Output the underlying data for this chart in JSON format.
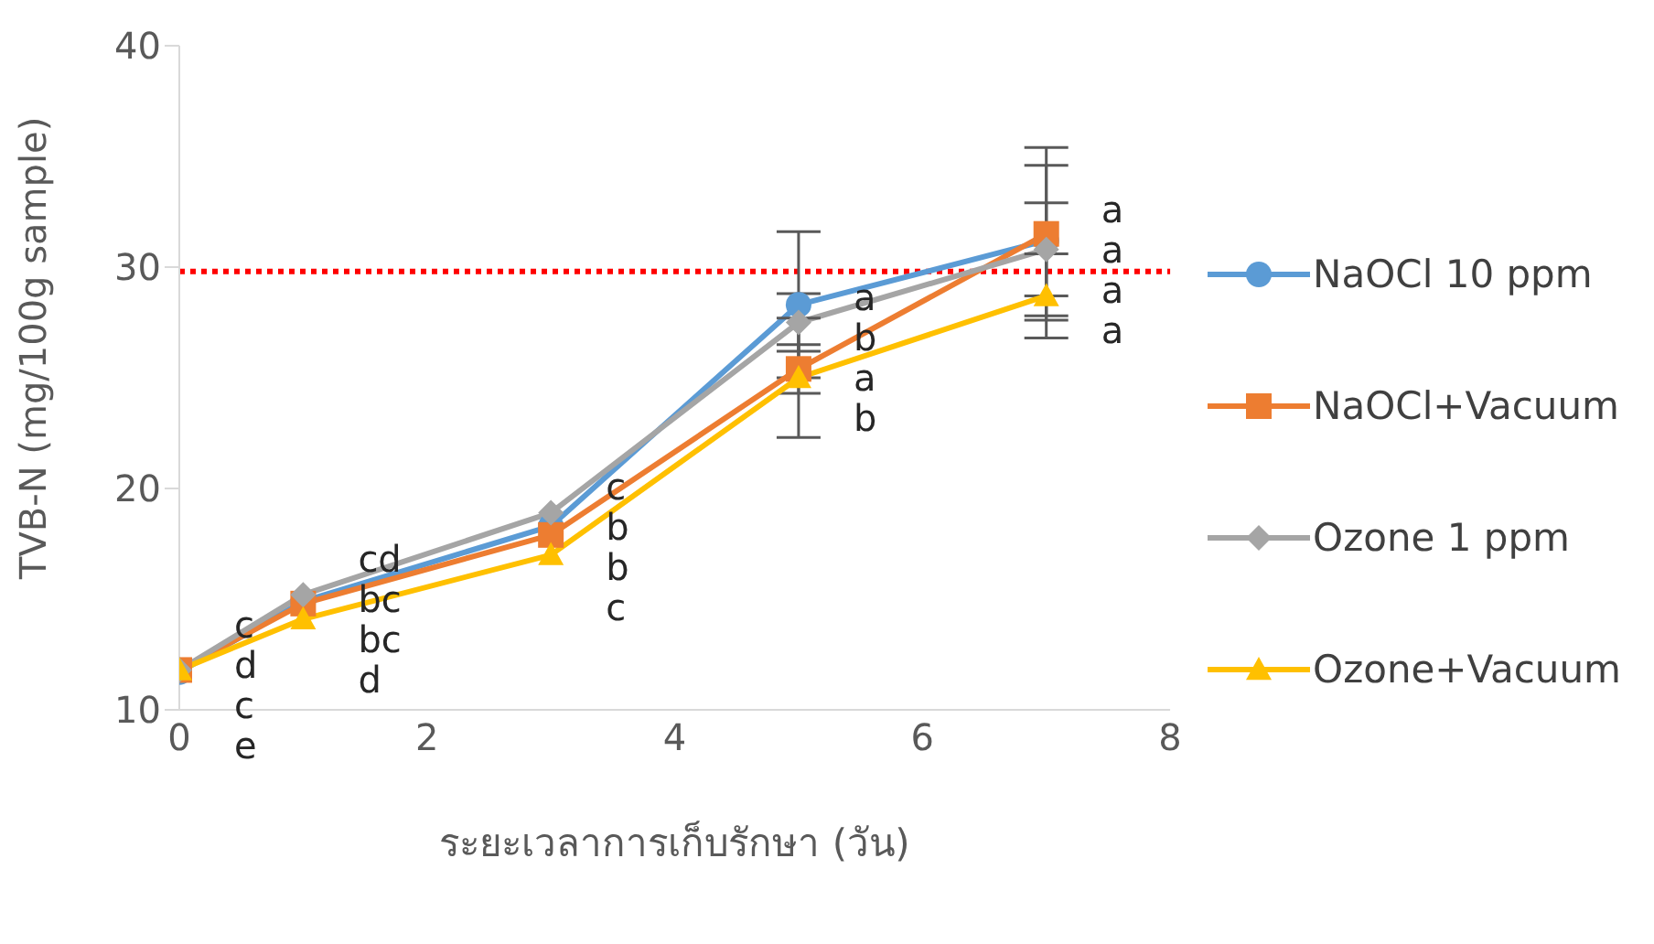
{
  "chart_data": {
    "type": "line",
    "xlabel": "ระยะเวลาการเก็บรักษา (วัน)",
    "ylabel": "TVB-N (mg/100g sample)",
    "x": [
      0,
      1,
      3,
      5,
      7
    ],
    "xlim": [
      0,
      8
    ],
    "xticks": [
      0,
      2,
      4,
      6,
      8
    ],
    "ylim": [
      10,
      40
    ],
    "yticks": [
      10,
      20,
      30,
      40
    ],
    "grid": false,
    "legend": "right",
    "series": [
      {
        "name": "NaOCl 10 ppm",
        "color": "#5b9bd5",
        "marker": "circle",
        "values": [
          11.7,
          14.9,
          18.3,
          28.3,
          31.2
        ],
        "errors": [
          null,
          null,
          null,
          3.3,
          3.4
        ],
        "value_labels": [
          "e",
          "bc",
          "b",
          "a",
          "a"
        ]
      },
      {
        "name": "NaOCl+Vacuum",
        "color": "#ed7d31",
        "marker": "square",
        "values": [
          11.8,
          14.8,
          17.9,
          25.4,
          31.5
        ],
        "errors": [
          null,
          null,
          null,
          1.1,
          3.9
        ],
        "value_labels": [
          "c",
          "bc",
          "b",
          "a",
          "a"
        ]
      },
      {
        "name": "Ozone 1 ppm",
        "color": "#a5a5a5",
        "marker": "diamond",
        "values": [
          11.8,
          15.2,
          18.9,
          27.5,
          30.8
        ],
        "errors": [
          null,
          null,
          null,
          1.3,
          2.1
        ],
        "value_labels": [
          "d",
          "cd",
          "c",
          "b",
          "a"
        ]
      },
      {
        "name": "Ozone+Vacuum",
        "color": "#ffc000",
        "marker": "triangle",
        "values": [
          11.8,
          14.1,
          17.0,
          25.0,
          28.7
        ],
        "errors": [
          null,
          null,
          null,
          2.7,
          1.9
        ],
        "value_labels": [
          "c",
          "d",
          "c",
          "b",
          "a"
        ]
      }
    ],
    "ref_lines": [
      {
        "axis": "y",
        "value": 29.8,
        "color": "#ff0000",
        "line_style": "dotted"
      }
    ]
  }
}
